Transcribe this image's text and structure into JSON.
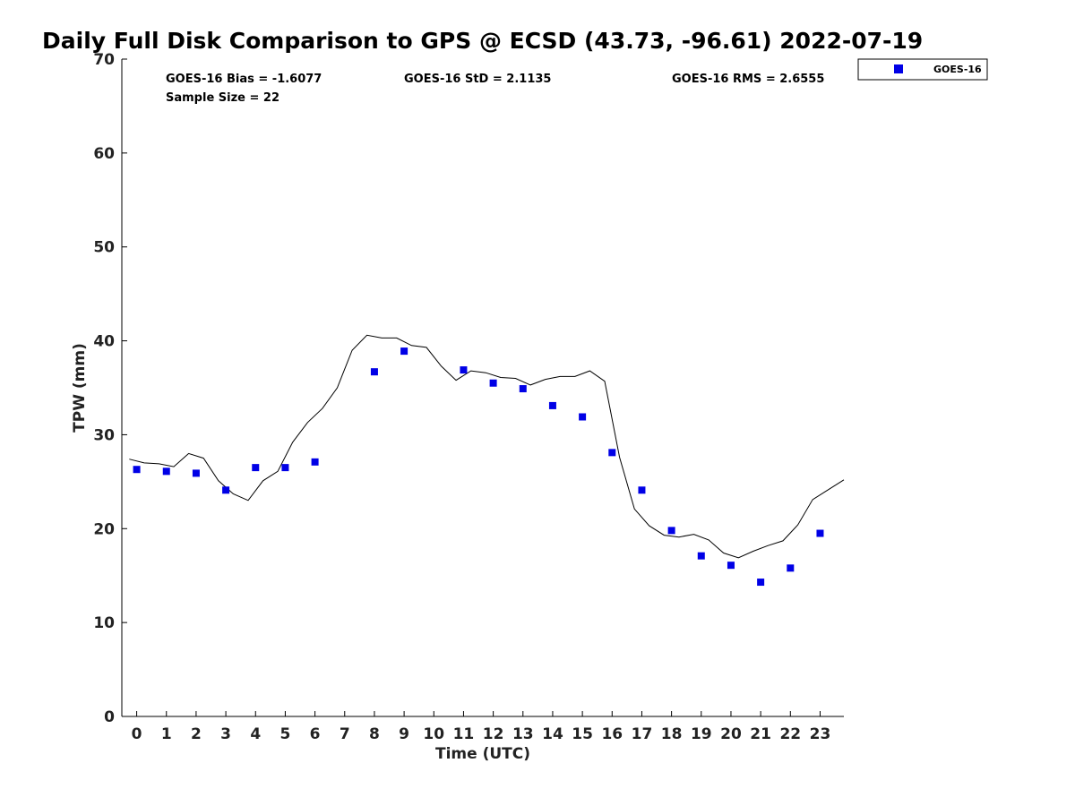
{
  "chart_data": {
    "type": "scatter",
    "title": "Daily Full Disk Comparison to GPS @ ECSD (43.73, -96.61) 2022-07-19",
    "xlabel": "Time (UTC)",
    "ylabel": "TPW (mm)",
    "xlim": [
      -0.5,
      23.8
    ],
    "ylim": [
      0,
      70
    ],
    "x_ticks": [
      "0",
      "1",
      "2",
      "3",
      "4",
      "5",
      "6",
      "7",
      "8",
      "9",
      "10",
      "11",
      "12",
      "13",
      "14",
      "15",
      "16",
      "17",
      "18",
      "19",
      "20",
      "21",
      "22",
      "23"
    ],
    "y_ticks": [
      "0",
      "10",
      "20",
      "30",
      "40",
      "50",
      "60",
      "70"
    ],
    "grid": false,
    "legend_position": "top-right",
    "stats": {
      "bias": "GOES-16 Bias = -1.6077",
      "std": "GOES-16 StD = 2.1135",
      "rms": "GOES-16 RMS = 2.6555",
      "sample": "Sample Size = 22"
    },
    "series": [
      {
        "name": "GOES-16",
        "style": "markers",
        "color": "#0000e6",
        "points": [
          [
            0,
            26.3
          ],
          [
            1,
            26.1
          ],
          [
            2,
            25.9
          ],
          [
            3,
            24.1
          ],
          [
            4,
            26.5
          ],
          [
            5,
            26.5
          ],
          [
            6,
            27.1
          ],
          [
            8,
            36.7
          ],
          [
            9,
            38.9
          ],
          [
            11,
            36.9
          ],
          [
            12,
            35.5
          ],
          [
            13,
            34.9
          ],
          [
            14,
            33.1
          ],
          [
            15,
            31.9
          ],
          [
            16,
            28.1
          ],
          [
            17,
            24.1
          ],
          [
            18,
            19.8
          ],
          [
            19,
            17.1
          ],
          [
            20,
            16.1
          ],
          [
            21,
            14.3
          ],
          [
            22,
            15.8
          ],
          [
            23,
            19.5
          ]
        ]
      },
      {
        "style": "line",
        "color": "#000000",
        "points": [
          [
            -0.25,
            27.4
          ],
          [
            0.25,
            27.0
          ],
          [
            0.75,
            26.9
          ],
          [
            1.25,
            26.6
          ],
          [
            1.75,
            28.0
          ],
          [
            2.25,
            27.5
          ],
          [
            2.75,
            25.1
          ],
          [
            3.25,
            23.7
          ],
          [
            3.75,
            23.0
          ],
          [
            4.25,
            25.1
          ],
          [
            4.75,
            26.1
          ],
          [
            5.25,
            29.2
          ],
          [
            5.75,
            31.3
          ],
          [
            6.25,
            32.8
          ],
          [
            6.75,
            35.0
          ],
          [
            7.25,
            39.0
          ],
          [
            7.75,
            40.6
          ],
          [
            8.25,
            40.3
          ],
          [
            8.75,
            40.3
          ],
          [
            9.25,
            39.5
          ],
          [
            9.75,
            39.3
          ],
          [
            10.25,
            37.3
          ],
          [
            10.75,
            35.8
          ],
          [
            11.25,
            36.8
          ],
          [
            11.75,
            36.6
          ],
          [
            12.25,
            36.1
          ],
          [
            12.75,
            36.0
          ],
          [
            13.25,
            35.3
          ],
          [
            13.75,
            35.9
          ],
          [
            14.25,
            36.2
          ],
          [
            14.75,
            36.2
          ],
          [
            15.25,
            36.8
          ],
          [
            15.75,
            35.7
          ],
          [
            16.25,
            27.6
          ],
          [
            16.75,
            22.1
          ],
          [
            17.25,
            20.3
          ],
          [
            17.75,
            19.3
          ],
          [
            18.25,
            19.1
          ],
          [
            18.75,
            19.4
          ],
          [
            19.25,
            18.8
          ],
          [
            19.75,
            17.4
          ],
          [
            20.25,
            16.9
          ],
          [
            20.75,
            17.6
          ],
          [
            21.25,
            18.2
          ],
          [
            21.75,
            18.7
          ],
          [
            22.25,
            20.4
          ],
          [
            22.75,
            23.1
          ],
          [
            23.25,
            24.1
          ],
          [
            23.8,
            25.2
          ]
        ]
      }
    ]
  }
}
